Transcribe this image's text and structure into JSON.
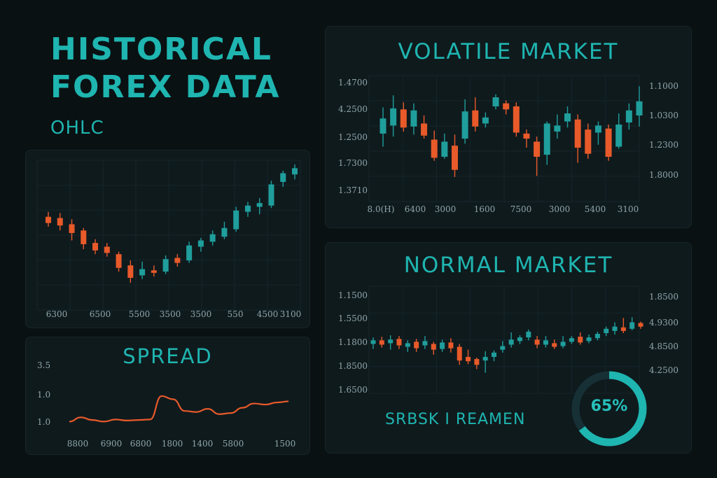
{
  "header": {
    "title_line1": "HISTORICAL",
    "title_line2": "FOREX DATA",
    "subtitle": "OHLC"
  },
  "colors": {
    "up": "#1f9e9c",
    "down": "#e85a2a",
    "accent": "#1fb5b0",
    "background": "#0a1113"
  },
  "spread_panel": {
    "title": "SPREAD"
  },
  "volatile_panel": {
    "title": "VOLATILE MARKET"
  },
  "normal_panel": {
    "title": "NORMAL MARKET",
    "footer": "SRBSK I REAMEN",
    "gauge_label": "65%"
  },
  "chart_data": [
    {
      "id": "ohlc",
      "type": "candlestick",
      "xlabels": [
        "6300",
        "6500",
        "5500",
        "3500",
        "3500",
        "550",
        "4500",
        "3100"
      ],
      "ylim": [
        0,
        100
      ],
      "candles": [
        {
          "o": 58,
          "c": 53,
          "h": 62,
          "l": 50
        },
        {
          "o": 57,
          "c": 51,
          "h": 61,
          "l": 47
        },
        {
          "o": 52,
          "c": 45,
          "h": 56,
          "l": 39
        },
        {
          "o": 47,
          "c": 36,
          "h": 49,
          "l": 32
        },
        {
          "o": 37,
          "c": 31,
          "h": 40,
          "l": 28
        },
        {
          "o": 34,
          "c": 29,
          "h": 37,
          "l": 26
        },
        {
          "o": 28,
          "c": 17,
          "h": 30,
          "l": 14
        },
        {
          "o": 19,
          "c": 9,
          "h": 23,
          "l": 5
        },
        {
          "o": 11,
          "c": 16,
          "h": 22,
          "l": 8
        },
        {
          "o": 15,
          "c": 13,
          "h": 19,
          "l": 10
        },
        {
          "o": 14,
          "c": 24,
          "h": 27,
          "l": 12
        },
        {
          "o": 25,
          "c": 21,
          "h": 28,
          "l": 18
        },
        {
          "o": 23,
          "c": 35,
          "h": 38,
          "l": 21
        },
        {
          "o": 34,
          "c": 39,
          "h": 41,
          "l": 30
        },
        {
          "o": 38,
          "c": 44,
          "h": 47,
          "l": 35
        },
        {
          "o": 42,
          "c": 49,
          "h": 54,
          "l": 40
        },
        {
          "o": 48,
          "c": 63,
          "h": 66,
          "l": 46
        },
        {
          "o": 62,
          "c": 67,
          "h": 70,
          "l": 58
        },
        {
          "o": 66,
          "c": 69,
          "h": 73,
          "l": 60
        },
        {
          "o": 67,
          "c": 84,
          "h": 87,
          "l": 65
        },
        {
          "o": 86,
          "c": 93,
          "h": 95,
          "l": 82
        },
        {
          "o": 92,
          "c": 97,
          "h": 100,
          "l": 88
        }
      ]
    },
    {
      "id": "spread",
      "type": "line",
      "ylabels": [
        "3.5",
        "1.0",
        "1.0"
      ],
      "xlabels": [
        "8800",
        "6900",
        "6800",
        "1800",
        "1400",
        "5800",
        "1500"
      ],
      "ylim": [
        0,
        100
      ],
      "values": [
        10,
        18,
        13,
        10,
        14,
        12,
        13,
        14,
        58,
        52,
        30,
        28,
        34,
        24,
        26,
        36,
        44,
        42,
        46,
        48
      ]
    },
    {
      "id": "volatile",
      "type": "candlestick",
      "ylabels_left": [
        "1.4700",
        "4.2500",
        "1.2500",
        "1.7300",
        "1.3710"
      ],
      "ylabels_right": [
        "1.1000",
        "1.0300",
        "1.2300",
        "1.8000"
      ],
      "xlabels": [
        "8.0(H)",
        "6400",
        "3000",
        "1600",
        "7500",
        "3000",
        "5400",
        "3100"
      ],
      "ylim": [
        0,
        100
      ],
      "candles": [
        {
          "o": 48,
          "c": 63,
          "h": 74,
          "l": 35
        },
        {
          "o": 56,
          "c": 73,
          "h": 86,
          "l": 45
        },
        {
          "o": 72,
          "c": 54,
          "h": 79,
          "l": 50
        },
        {
          "o": 55,
          "c": 71,
          "h": 78,
          "l": 47
        },
        {
          "o": 58,
          "c": 46,
          "h": 66,
          "l": 43
        },
        {
          "o": 42,
          "c": 24,
          "h": 51,
          "l": 21
        },
        {
          "o": 25,
          "c": 40,
          "h": 48,
          "l": 23
        },
        {
          "o": 36,
          "c": 12,
          "h": 47,
          "l": 5
        },
        {
          "o": 43,
          "c": 70,
          "h": 82,
          "l": 38
        },
        {
          "o": 71,
          "c": 55,
          "h": 84,
          "l": 50
        },
        {
          "o": 58,
          "c": 64,
          "h": 69,
          "l": 54
        },
        {
          "o": 75,
          "c": 84,
          "h": 87,
          "l": 72
        },
        {
          "o": 78,
          "c": 72,
          "h": 81,
          "l": 67
        },
        {
          "o": 75,
          "c": 49,
          "h": 79,
          "l": 45
        },
        {
          "o": 48,
          "c": 43,
          "h": 52,
          "l": 34
        },
        {
          "o": 40,
          "c": 25,
          "h": 45,
          "l": 6
        },
        {
          "o": 27,
          "c": 58,
          "h": 60,
          "l": 17
        },
        {
          "o": 50,
          "c": 56,
          "h": 67,
          "l": 43
        },
        {
          "o": 60,
          "c": 68,
          "h": 75,
          "l": 54
        },
        {
          "o": 62,
          "c": 34,
          "h": 67,
          "l": 19
        },
        {
          "o": 52,
          "c": 28,
          "h": 58,
          "l": 23
        },
        {
          "o": 49,
          "c": 56,
          "h": 60,
          "l": 37
        },
        {
          "o": 53,
          "c": 25,
          "h": 57,
          "l": 21
        },
        {
          "o": 35,
          "c": 57,
          "h": 68,
          "l": 33
        },
        {
          "o": 59,
          "c": 71,
          "h": 78,
          "l": 52
        },
        {
          "o": 66,
          "c": 80,
          "h": 95,
          "l": 55
        }
      ]
    },
    {
      "id": "normal",
      "type": "candlestick",
      "ylabels_left": [
        "1.1500",
        "1.5500",
        "1.1800",
        "1.8500",
        "1.6500"
      ],
      "ylabels_right": [
        "1.8500",
        "4.9300",
        "4.8500",
        "4.2500"
      ],
      "ylim": [
        0,
        100
      ],
      "candles": [
        {
          "o": 52,
          "c": 57,
          "h": 61,
          "l": 45
        },
        {
          "o": 57,
          "c": 51,
          "h": 62,
          "l": 47
        },
        {
          "o": 53,
          "c": 58,
          "h": 64,
          "l": 44
        },
        {
          "o": 59,
          "c": 50,
          "h": 63,
          "l": 45
        },
        {
          "o": 48,
          "c": 53,
          "h": 57,
          "l": 41
        },
        {
          "o": 55,
          "c": 46,
          "h": 59,
          "l": 41
        },
        {
          "o": 50,
          "c": 56,
          "h": 63,
          "l": 45
        },
        {
          "o": 52,
          "c": 44,
          "h": 55,
          "l": 37
        },
        {
          "o": 45,
          "c": 54,
          "h": 58,
          "l": 41
        },
        {
          "o": 54,
          "c": 46,
          "h": 60,
          "l": 40
        },
        {
          "o": 48,
          "c": 29,
          "h": 52,
          "l": 23
        },
        {
          "o": 34,
          "c": 28,
          "h": 44,
          "l": 24
        },
        {
          "o": 31,
          "c": 23,
          "h": 33,
          "l": 17
        },
        {
          "o": 29,
          "c": 34,
          "h": 42,
          "l": 12
        },
        {
          "o": 34,
          "c": 40,
          "h": 43,
          "l": 28
        },
        {
          "o": 44,
          "c": 49,
          "h": 56,
          "l": 40
        },
        {
          "o": 51,
          "c": 58,
          "h": 68,
          "l": 47
        },
        {
          "o": 56,
          "c": 61,
          "h": 64,
          "l": 52
        },
        {
          "o": 61,
          "c": 69,
          "h": 72,
          "l": 57
        },
        {
          "o": 58,
          "c": 51,
          "h": 63,
          "l": 46
        },
        {
          "o": 51,
          "c": 57,
          "h": 63,
          "l": 47
        },
        {
          "o": 53,
          "c": 48,
          "h": 58,
          "l": 45
        },
        {
          "o": 49,
          "c": 55,
          "h": 63,
          "l": 46
        },
        {
          "o": 55,
          "c": 60,
          "h": 63,
          "l": 52
        },
        {
          "o": 62,
          "c": 54,
          "h": 68,
          "l": 51
        },
        {
          "o": 56,
          "c": 61,
          "h": 65,
          "l": 53
        },
        {
          "o": 60,
          "c": 66,
          "h": 69,
          "l": 57
        },
        {
          "o": 67,
          "c": 73,
          "h": 76,
          "l": 63
        },
        {
          "o": 70,
          "c": 76,
          "h": 82,
          "l": 65
        },
        {
          "o": 75,
          "c": 70,
          "h": 88,
          "l": 67
        },
        {
          "o": 73,
          "c": 82,
          "h": 89,
          "l": 71
        },
        {
          "o": 81,
          "c": 76,
          "h": 83,
          "l": 73
        }
      ]
    },
    {
      "id": "gauge",
      "type": "pie",
      "value": 65
    }
  ]
}
